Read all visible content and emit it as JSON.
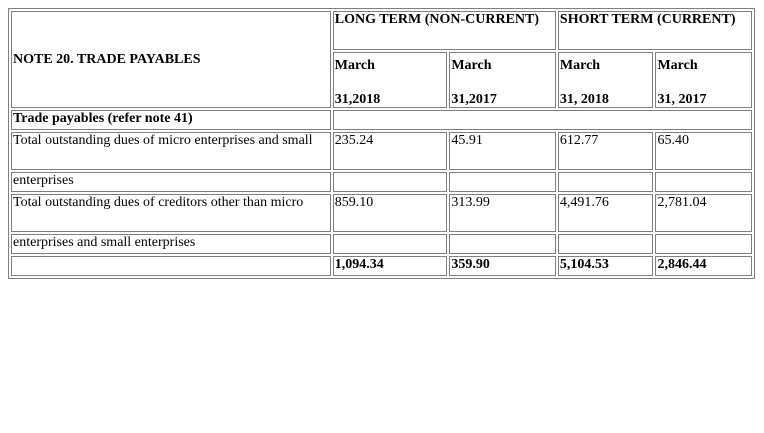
{
  "table": {
    "title": "NOTE 20. TRADE PAYABLES",
    "groups": {
      "long_term": "LONG TERM (NON-CURRENT)",
      "short_term": "SHORT TERM (CURRENT)"
    },
    "date_headers": [
      {
        "line1": "March",
        "line2": "31,2018"
      },
      {
        "line1": "March",
        "line2": "31,2017"
      },
      {
        "line1": "March",
        "line2": "31, 2018"
      },
      {
        "line1": "March",
        "line2": "31, 2017"
      }
    ],
    "section_label": "Trade payables (refer note 41)",
    "rows": [
      {
        "label": "Total outstanding dues of micro enterprises and small",
        "values": [
          "235.24",
          "45.91",
          "612.77",
          "65.40"
        ]
      },
      {
        "label": "enterprises",
        "values": [
          "",
          "",
          "",
          ""
        ]
      },
      {
        "label": "Total outstanding dues of creditors other than micro",
        "values": [
          "859.10",
          "313.99",
          "4,491.76",
          "2,781.04"
        ]
      },
      {
        "label": "enterprises and small enterprises",
        "values": [
          "",
          "",
          "",
          ""
        ]
      }
    ],
    "totals": [
      "1,094.34",
      "359.90",
      "5,104.53",
      "2,846.44"
    ]
  }
}
